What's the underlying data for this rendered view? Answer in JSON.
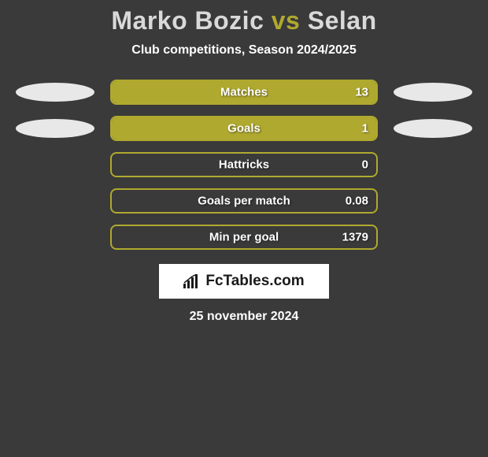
{
  "title": {
    "player1": "Marko Bozic",
    "vs": "vs",
    "player2": "Selan"
  },
  "subtitle": "Club competitions, Season 2024/2025",
  "colors": {
    "bar_fill": "#afa92f",
    "bar_border": "#afa92f",
    "background": "#3a3a3a",
    "ellipse": "#e8e8e8"
  },
  "stats": [
    {
      "label": "Matches",
      "value": "13",
      "fill_pct": 100,
      "left_ellipse": true,
      "right_ellipse": true
    },
    {
      "label": "Goals",
      "value": "1",
      "fill_pct": 100,
      "left_ellipse": true,
      "right_ellipse": true
    },
    {
      "label": "Hattricks",
      "value": "0",
      "fill_pct": 0,
      "left_ellipse": false,
      "right_ellipse": false
    },
    {
      "label": "Goals per match",
      "value": "0.08",
      "fill_pct": 0,
      "left_ellipse": false,
      "right_ellipse": false
    },
    {
      "label": "Min per goal",
      "value": "1379",
      "fill_pct": 0,
      "left_ellipse": false,
      "right_ellipse": false
    }
  ],
  "logo": {
    "text": "FcTables.com"
  },
  "date": "25 november 2024"
}
